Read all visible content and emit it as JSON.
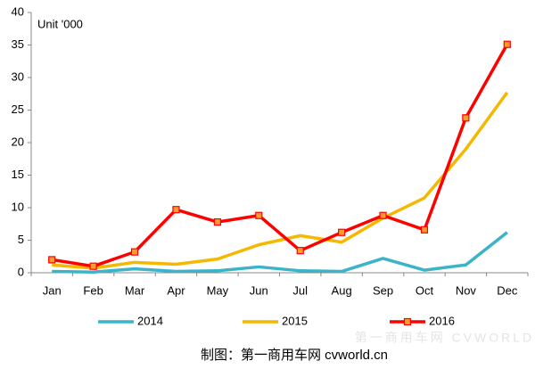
{
  "chart_data": {
    "type": "line",
    "annotation": "Unit '000",
    "categories": [
      "Jan",
      "Feb",
      "Mar",
      "Apr",
      "May",
      "Jun",
      "Jul",
      "Aug",
      "Sep",
      "Oct",
      "Nov",
      "Dec"
    ],
    "series": [
      {
        "name": "2014",
        "color": "#3cb4c8",
        "values": [
          0.2,
          0.1,
          0.6,
          0.2,
          0.3,
          0.9,
          0.3,
          0.2,
          2.2,
          0.4,
          1.2,
          6.2
        ]
      },
      {
        "name": "2015",
        "color": "#f5b800",
        "values": [
          1.2,
          0.7,
          1.6,
          1.3,
          2.1,
          4.3,
          5.7,
          4.7,
          8.4,
          11.5,
          19,
          27.7
        ]
      },
      {
        "name": "2016",
        "color": "#ff0000",
        "marker": "square",
        "marker_color": "#ff9a2e",
        "values": [
          2.0,
          1.0,
          3.2,
          9.7,
          7.8,
          8.8,
          3.4,
          6.2,
          8.8,
          6.6,
          23.8,
          35.1
        ]
      }
    ],
    "ylim": [
      0,
      40
    ],
    "yticks": [
      0,
      5,
      10,
      15,
      20,
      25,
      30,
      35,
      40
    ],
    "legend": "bottom",
    "source": "制图：第一商用车网 cvworld.cn",
    "watermark": "第一商用车网 CVWORLD.CN"
  }
}
